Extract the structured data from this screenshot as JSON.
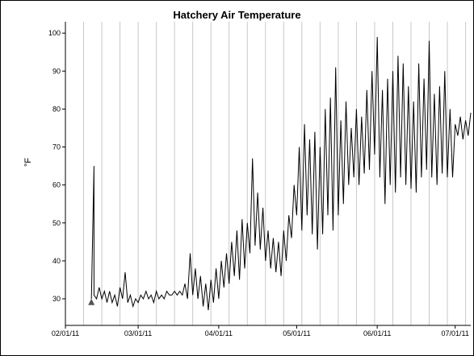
{
  "chart_data": {
    "type": "line",
    "title": "Hatchery Air Temperature",
    "xlabel": "",
    "ylabel": "°F",
    "ylim": [
      23,
      103
    ],
    "yticks": [
      30,
      40,
      50,
      60,
      70,
      80,
      90,
      100
    ],
    "x_range": [
      "2011-02-01",
      "2011-07-07"
    ],
    "xticks": [
      {
        "date": "2011-02-01",
        "label": "02/01/11"
      },
      {
        "date": "2011-03-01",
        "label": "03/01/11"
      },
      {
        "date": "2011-04-01",
        "label": "04/01/11"
      },
      {
        "date": "2011-05-01",
        "label": "05/01/11"
      },
      {
        "date": "2011-06-01",
        "label": "06/01/11"
      },
      {
        "date": "2011-07-01",
        "label": "07/01/11"
      }
    ],
    "vertical_gridlines": "weekly",
    "marker": {
      "date": "2011-02-11",
      "value": 29,
      "shape": "triangle"
    },
    "series": [
      {
        "color": "#000000",
        "points": [
          [
            "2011-02-11",
            30
          ],
          [
            "2011-02-12",
            65
          ],
          [
            "2011-02-12",
            31
          ],
          [
            "2011-02-13",
            30
          ],
          [
            "2011-02-14",
            33
          ],
          [
            "2011-02-15",
            30
          ],
          [
            "2011-02-16",
            32
          ],
          [
            "2011-02-17",
            29
          ],
          [
            "2011-02-18",
            32
          ],
          [
            "2011-02-19",
            29
          ],
          [
            "2011-02-20",
            31
          ],
          [
            "2011-02-21",
            28
          ],
          [
            "2011-02-22",
            33
          ],
          [
            "2011-02-23",
            30
          ],
          [
            "2011-02-24",
            37
          ],
          [
            "2011-02-25",
            29
          ],
          [
            "2011-02-26",
            31
          ],
          [
            "2011-02-27",
            28
          ],
          [
            "2011-02-28",
            30
          ],
          [
            "2011-03-01",
            29
          ],
          [
            "2011-03-02",
            31
          ],
          [
            "2011-03-03",
            30
          ],
          [
            "2011-03-04",
            32
          ],
          [
            "2011-03-05",
            30
          ],
          [
            "2011-03-06",
            31
          ],
          [
            "2011-03-07",
            29
          ],
          [
            "2011-03-08",
            32
          ],
          [
            "2011-03-09",
            30
          ],
          [
            "2011-03-10",
            31
          ],
          [
            "2011-03-11",
            30
          ],
          [
            "2011-03-12",
            32
          ],
          [
            "2011-03-13",
            31
          ],
          [
            "2011-03-14",
            31
          ],
          [
            "2011-03-15",
            32
          ],
          [
            "2011-03-16",
            31
          ],
          [
            "2011-03-17",
            32
          ],
          [
            "2011-03-18",
            31
          ],
          [
            "2011-03-19",
            34
          ],
          [
            "2011-03-20",
            30
          ],
          [
            "2011-03-21",
            42
          ],
          [
            "2011-03-22",
            31
          ],
          [
            "2011-03-23",
            38
          ],
          [
            "2011-03-24",
            30
          ],
          [
            "2011-03-25",
            36
          ],
          [
            "2011-03-26",
            28
          ],
          [
            "2011-03-27",
            34
          ],
          [
            "2011-03-28",
            27
          ],
          [
            "2011-03-29",
            35
          ],
          [
            "2011-03-30",
            29
          ],
          [
            "2011-03-31",
            38
          ],
          [
            "2011-04-01",
            30
          ],
          [
            "2011-04-02",
            40
          ],
          [
            "2011-04-03",
            33
          ],
          [
            "2011-04-04",
            42
          ],
          [
            "2011-04-05",
            34
          ],
          [
            "2011-04-06",
            45
          ],
          [
            "2011-04-07",
            36
          ],
          [
            "2011-04-08",
            48
          ],
          [
            "2011-04-09",
            35
          ],
          [
            "2011-04-10",
            51
          ],
          [
            "2011-04-11",
            38
          ],
          [
            "2011-04-12",
            50
          ],
          [
            "2011-04-13",
            42
          ],
          [
            "2011-04-14",
            67
          ],
          [
            "2011-04-15",
            44
          ],
          [
            "2011-04-16",
            58
          ],
          [
            "2011-04-17",
            43
          ],
          [
            "2011-04-18",
            54
          ],
          [
            "2011-04-19",
            40
          ],
          [
            "2011-04-20",
            48
          ],
          [
            "2011-04-21",
            38
          ],
          [
            "2011-04-22",
            46
          ],
          [
            "2011-04-23",
            37
          ],
          [
            "2011-04-24",
            45
          ],
          [
            "2011-04-25",
            36
          ],
          [
            "2011-04-26",
            48
          ],
          [
            "2011-04-27",
            40
          ],
          [
            "2011-04-28",
            52
          ],
          [
            "2011-04-29",
            46
          ],
          [
            "2011-04-30",
            60
          ],
          [
            "2011-05-01",
            52
          ],
          [
            "2011-05-02",
            70
          ],
          [
            "2011-05-03",
            48
          ],
          [
            "2011-05-04",
            76
          ],
          [
            "2011-05-05",
            52
          ],
          [
            "2011-05-06",
            72
          ],
          [
            "2011-05-07",
            47
          ],
          [
            "2011-05-08",
            74
          ],
          [
            "2011-05-09",
            43
          ],
          [
            "2011-05-10",
            70
          ],
          [
            "2011-05-11",
            47
          ],
          [
            "2011-05-12",
            80
          ],
          [
            "2011-05-13",
            52
          ],
          [
            "2011-05-14",
            83
          ],
          [
            "2011-05-15",
            48
          ],
          [
            "2011-05-16",
            91
          ],
          [
            "2011-05-17",
            52
          ],
          [
            "2011-05-18",
            77
          ],
          [
            "2011-05-19",
            55
          ],
          [
            "2011-05-20",
            82
          ],
          [
            "2011-05-21",
            60
          ],
          [
            "2011-05-22",
            75
          ],
          [
            "2011-05-23",
            62
          ],
          [
            "2011-05-24",
            80
          ],
          [
            "2011-05-25",
            60
          ],
          [
            "2011-05-26",
            78
          ],
          [
            "2011-05-27",
            63
          ],
          [
            "2011-05-28",
            85
          ],
          [
            "2011-05-29",
            64
          ],
          [
            "2011-05-30",
            90
          ],
          [
            "2011-05-31",
            68
          ],
          [
            "2011-06-01",
            99
          ],
          [
            "2011-06-02",
            62
          ],
          [
            "2011-06-03",
            85
          ],
          [
            "2011-06-04",
            55
          ],
          [
            "2011-06-05",
            88
          ],
          [
            "2011-06-06",
            60
          ],
          [
            "2011-06-07",
            90
          ],
          [
            "2011-06-08",
            58
          ],
          [
            "2011-06-09",
            94
          ],
          [
            "2011-06-10",
            62
          ],
          [
            "2011-06-11",
            92
          ],
          [
            "2011-06-12",
            60
          ],
          [
            "2011-06-13",
            86
          ],
          [
            "2011-06-14",
            59
          ],
          [
            "2011-06-15",
            82
          ],
          [
            "2011-06-16",
            58
          ],
          [
            "2011-06-17",
            92
          ],
          [
            "2011-06-18",
            62
          ],
          [
            "2011-06-19",
            88
          ],
          [
            "2011-06-20",
            64
          ],
          [
            "2011-06-21",
            98
          ],
          [
            "2011-06-22",
            62
          ],
          [
            "2011-06-23",
            84
          ],
          [
            "2011-06-24",
            60
          ],
          [
            "2011-06-25",
            86
          ],
          [
            "2011-06-26",
            63
          ],
          [
            "2011-06-27",
            90
          ],
          [
            "2011-06-28",
            62
          ],
          [
            "2011-06-29",
            80
          ],
          [
            "2011-06-30",
            62
          ],
          [
            "2011-07-01",
            76
          ],
          [
            "2011-07-02",
            73
          ],
          [
            "2011-07-03",
            78
          ],
          [
            "2011-07-04",
            72
          ],
          [
            "2011-07-05",
            77
          ],
          [
            "2011-07-06",
            73
          ],
          [
            "2011-07-07",
            79
          ]
        ]
      }
    ]
  }
}
